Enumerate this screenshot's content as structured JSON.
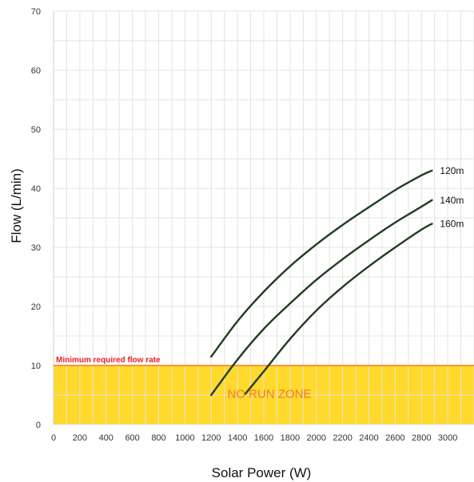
{
  "chart_data": {
    "type": "line",
    "xlabel": "Solar Power (W)",
    "ylabel": "Flow (L/min)",
    "xlim": [
      0,
      3200
    ],
    "ylim": [
      0,
      70
    ],
    "xticks": [
      0,
      200,
      400,
      600,
      800,
      1000,
      1200,
      1400,
      1600,
      1800,
      2000,
      2200,
      2400,
      2600,
      2800,
      3000
    ],
    "yticks": [
      0,
      10,
      20,
      30,
      40,
      50,
      60,
      70
    ],
    "grid": true,
    "series": [
      {
        "name": "120m",
        "color": "#1f3d1f",
        "x": [
          1200,
          1400,
          1600,
          1800,
          2000,
          2200,
          2400,
          2600,
          2800,
          2880
        ],
        "y": [
          11.5,
          17.5,
          22.5,
          26.8,
          30.5,
          33.8,
          36.8,
          39.7,
          42.2,
          43.0
        ]
      },
      {
        "name": "140m",
        "color": "#1f3d1f",
        "x": [
          1200,
          1400,
          1600,
          1800,
          2000,
          2200,
          2400,
          2600,
          2800,
          2880
        ],
        "y": [
          5.0,
          11.0,
          16.2,
          20.5,
          24.5,
          28.0,
          31.2,
          34.2,
          36.9,
          38.0
        ]
      },
      {
        "name": "160m",
        "color": "#1f3d1f",
        "x": [
          1460,
          1600,
          1800,
          2000,
          2200,
          2400,
          2600,
          2800,
          2880
        ],
        "y": [
          5.2,
          9.0,
          14.5,
          19.3,
          23.3,
          26.8,
          30.0,
          33.0,
          34.0
        ]
      }
    ],
    "threshold": {
      "label": "Minimum required flow rate",
      "value": 10,
      "color": "#f47a1f"
    },
    "zone": {
      "label": "NO RUN ZONE",
      "from": 0,
      "to": 10,
      "fill": "#ffd92b",
      "text_color": "#f47a1f"
    }
  }
}
